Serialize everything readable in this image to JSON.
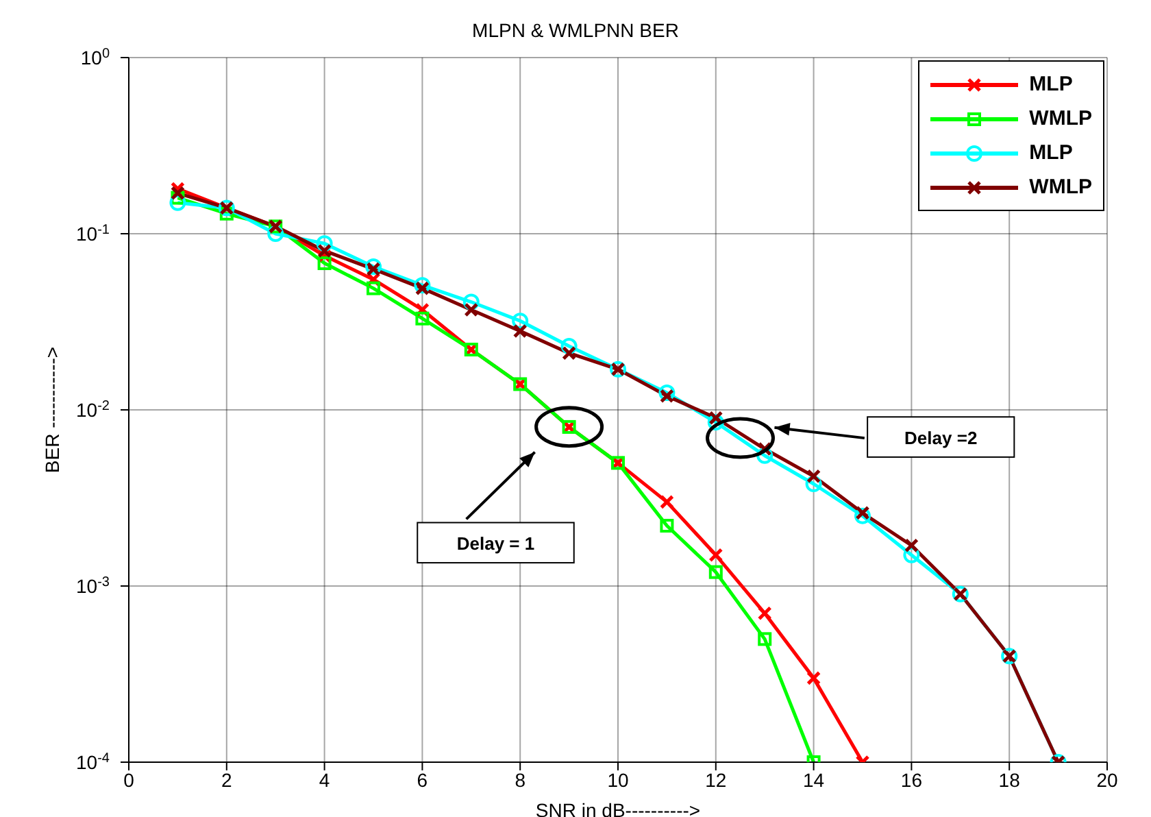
{
  "chart_data": {
    "type": "line",
    "title": "MLPN & WMLPNN  BER",
    "xlabel": "SNR in dB---------->",
    "ylabel": "BER ----------->",
    "log": "y",
    "grid": true,
    "legend": "top right",
    "line_style": "solid",
    "xlim": [
      0,
      20
    ],
    "xticks": [
      0,
      2,
      4,
      6,
      8,
      10,
      12,
      14,
      16,
      18,
      20
    ],
    "ylim": [
      0.0001,
      1
    ],
    "yticks": [
      {
        "value": 0.0001,
        "label": "10$^{-4}$"
      },
      {
        "value": 0.001,
        "label": "10$^{-3}$"
      },
      {
        "value": 0.01,
        "label": "10$^{-2}$"
      },
      {
        "value": 0.1,
        "label": "10$^{-1}$"
      },
      {
        "value": 1,
        "label": "10$^{0}$"
      }
    ],
    "series": [
      {
        "name": "MLP",
        "color": "#ff0000",
        "marker": "cross",
        "x": [
          1,
          2,
          3,
          4,
          5,
          6,
          7,
          8,
          9,
          10,
          11,
          12,
          13,
          14,
          15
        ],
        "values": [
          0.18,
          0.14,
          0.11,
          0.075,
          0.055,
          0.037,
          0.022,
          0.014,
          0.008,
          0.005,
          0.003,
          0.0015,
          0.0007,
          0.0003,
          0.0001
        ]
      },
      {
        "name": "WMLP",
        "color": "#00ff00",
        "marker": "square",
        "x": [
          1,
          2,
          3,
          4,
          5,
          6,
          7,
          8,
          9,
          10,
          11,
          12,
          13,
          14
        ],
        "values": [
          0.16,
          0.13,
          0.11,
          0.068,
          0.049,
          0.033,
          0.022,
          0.014,
          0.008,
          0.005,
          0.0022,
          0.0012,
          0.0005,
          0.0001
        ]
      },
      {
        "name": "MLP",
        "color": "#00ffff",
        "marker": "circle",
        "x": [
          1,
          2,
          3,
          4,
          5,
          6,
          7,
          8,
          9,
          10,
          11,
          12,
          13,
          14,
          15,
          16,
          17,
          18,
          19
        ],
        "values": [
          0.15,
          0.14,
          0.1,
          0.088,
          0.065,
          0.051,
          0.041,
          0.032,
          0.023,
          0.017,
          0.0125,
          0.0085,
          0.0055,
          0.0038,
          0.0025,
          0.0015,
          0.0009,
          0.0004,
          0.0001
        ]
      },
      {
        "name": "WMLP",
        "color": "#800000",
        "marker": "cross",
        "x": [
          1,
          2,
          3,
          4,
          5,
          6,
          7,
          8,
          9,
          10,
          11,
          12,
          13,
          14,
          15,
          16,
          17,
          18,
          19
        ],
        "values": [
          0.17,
          0.14,
          0.11,
          0.08,
          0.063,
          0.049,
          0.037,
          0.028,
          0.021,
          0.017,
          0.012,
          0.009,
          0.006,
          0.0042,
          0.0026,
          0.0017,
          0.0009,
          0.0004,
          0.0001
        ]
      }
    ],
    "annotations": [
      "Delay = 1",
      "Delay =2"
    ]
  }
}
